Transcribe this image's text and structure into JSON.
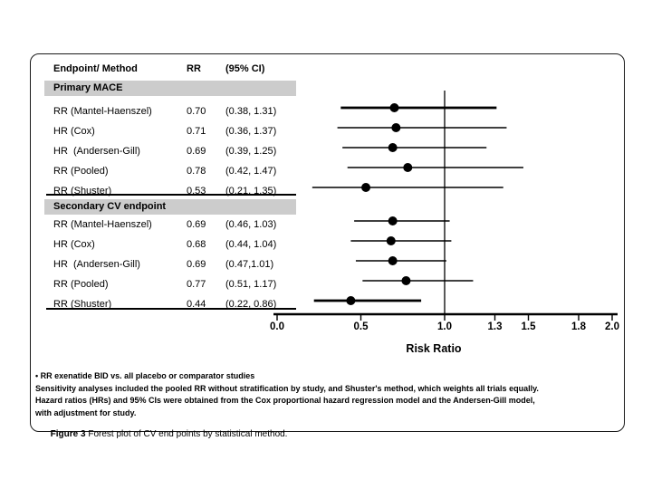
{
  "table": {
    "headers": {
      "endpoint": "Endpoint/ Method",
      "rr": "RR",
      "ci": "(95% CI)"
    }
  },
  "chart_data": {
    "type": "forest",
    "xlabel": "Risk Ratio",
    "xlim": [
      0.0,
      2.0
    ],
    "xticks": [
      {
        "value": 0.0,
        "label": "0.0"
      },
      {
        "value": 0.5,
        "label": "0.5"
      },
      {
        "value": 1.0,
        "label": "1.0"
      },
      {
        "value": 1.3,
        "label": "1.3"
      },
      {
        "value": 1.5,
        "label": "1.5"
      },
      {
        "value": 1.8,
        "label": "1.8"
      },
      {
        "value": 2.0,
        "label": "2.0"
      }
    ],
    "reference_line": 1.0,
    "grid": false,
    "sections": [
      {
        "name": "Primary MACE",
        "points": [
          {
            "label": "RR (Mantel-Haenszel)",
            "rr_text": "0.70",
            "ci_text": "(0.38, 1.31)",
            "estimate": 0.7,
            "ci_low": 0.38,
            "ci_high": 1.31,
            "bold": true
          },
          {
            "label": "HR (Cox)",
            "rr_text": "0.71",
            "ci_text": "(0.36, 1.37)",
            "estimate": 0.71,
            "ci_low": 0.36,
            "ci_high": 1.37,
            "bold": false
          },
          {
            "label": "HR  (Andersen-Gill)",
            "rr_text": "0.69",
            "ci_text": "(0.39, 1.25)",
            "estimate": 0.69,
            "ci_low": 0.39,
            "ci_high": 1.25,
            "bold": false
          },
          {
            "label": "RR (Pooled)",
            "rr_text": "0.78",
            "ci_text": "(0.42, 1.47)",
            "estimate": 0.78,
            "ci_low": 0.42,
            "ci_high": 1.47,
            "bold": false
          },
          {
            "label": "RR (Shuster)",
            "rr_text": "0.53",
            "ci_text": "(0.21, 1.35)",
            "estimate": 0.53,
            "ci_low": 0.21,
            "ci_high": 1.35,
            "bold": false
          }
        ]
      },
      {
        "name": "Secondary CV endpoint",
        "points": [
          {
            "label": "RR (Mantel-Haenszel)",
            "rr_text": "0.69",
            "ci_text": "(0.46, 1.03)",
            "estimate": 0.69,
            "ci_low": 0.46,
            "ci_high": 1.03,
            "bold": false
          },
          {
            "label": "HR (Cox)",
            "rr_text": "0.68",
            "ci_text": "(0.44, 1.04)",
            "estimate": 0.68,
            "ci_low": 0.44,
            "ci_high": 1.04,
            "bold": false
          },
          {
            "label": "HR  (Andersen-Gill)",
            "rr_text": "0.69",
            "ci_text": "(0.47,1.01)",
            "estimate": 0.69,
            "ci_low": 0.47,
            "ci_high": 1.01,
            "bold": false
          },
          {
            "label": "RR (Pooled)",
            "rr_text": "0.77",
            "ci_text": "(0.51, 1.17)",
            "estimate": 0.77,
            "ci_low": 0.51,
            "ci_high": 1.17,
            "bold": false
          },
          {
            "label": "RR (Shuster)",
            "rr_text": "0.44",
            "ci_text": "(0.22, 0.86)",
            "estimate": 0.44,
            "ci_low": 0.22,
            "ci_high": 0.86,
            "bold": true
          }
        ]
      }
    ]
  },
  "footnotes": [
    "• RR exenatide BID vs. all placebo or comparator studies",
    "Sensitivity analyses included the pooled RR without stratification by study, and Shuster's method, which weights all trials equally.",
    "Hazard ratios (HRs) and 95% CIs were obtained from the Cox proportional hazard regression model and the Andersen-Gill model,",
    "with adjustment for study."
  ],
  "caption": {
    "label": "Figure 3",
    "text": " Forest plot of CV end points by statistical method."
  },
  "colors": {
    "ink": "#000000",
    "band": "#cccccc",
    "background": "#ffffff"
  }
}
